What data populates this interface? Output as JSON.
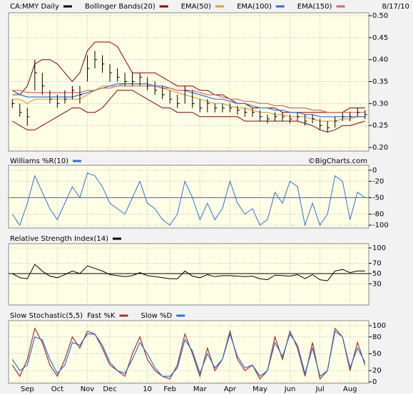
{
  "chart_data": [
    {
      "type": "ohlc",
      "title": "CA:MMY Daily",
      "date": "8/17/10",
      "color": "#000000",
      "categories": [
        null,
        null,
        "Sep",
        null,
        null,
        null,
        "Oct",
        null,
        null,
        null,
        "Nov",
        null,
        null,
        "Dec",
        null,
        null,
        null,
        null,
        "10",
        null,
        null,
        "Feb",
        null,
        null,
        null,
        "Mar",
        null,
        null,
        null,
        "Apr",
        null,
        null,
        null,
        "May",
        null,
        null,
        null,
        "Jun",
        null,
        null,
        null,
        "Jul",
        null,
        null,
        null,
        "Aug",
        null,
        null
      ],
      "high": [
        0.31,
        0.3,
        0.29,
        0.4,
        0.37,
        0.33,
        0.32,
        0.33,
        0.34,
        0.34,
        0.41,
        0.42,
        0.41,
        0.39,
        0.38,
        0.37,
        0.37,
        0.37,
        0.36,
        0.35,
        0.34,
        0.33,
        0.32,
        0.34,
        0.33,
        0.31,
        0.31,
        0.3,
        0.3,
        0.3,
        0.295,
        0.29,
        0.29,
        0.285,
        0.275,
        0.28,
        0.28,
        0.275,
        0.28,
        0.275,
        0.275,
        0.265,
        0.26,
        0.27,
        0.28,
        0.28,
        0.29,
        0.285
      ],
      "low": [
        0.29,
        0.27,
        0.25,
        0.33,
        0.32,
        0.3,
        0.29,
        0.3,
        0.31,
        0.3,
        0.35,
        0.38,
        0.37,
        0.35,
        0.35,
        0.34,
        0.34,
        0.34,
        0.33,
        0.32,
        0.31,
        0.3,
        0.29,
        0.3,
        0.29,
        0.28,
        0.28,
        0.28,
        0.28,
        0.28,
        0.275,
        0.27,
        0.27,
        0.26,
        0.255,
        0.26,
        0.26,
        0.255,
        0.26,
        0.25,
        0.255,
        0.24,
        0.235,
        0.245,
        0.26,
        0.26,
        0.27,
        0.265
      ],
      "close": [
        0.3,
        0.28,
        0.27,
        0.37,
        0.34,
        0.31,
        0.3,
        0.31,
        0.33,
        0.32,
        0.38,
        0.4,
        0.39,
        0.37,
        0.36,
        0.35,
        0.35,
        0.36,
        0.34,
        0.33,
        0.32,
        0.31,
        0.3,
        0.33,
        0.3,
        0.29,
        0.3,
        0.29,
        0.29,
        0.29,
        0.285,
        0.28,
        0.28,
        0.27,
        0.265,
        0.27,
        0.27,
        0.265,
        0.27,
        0.26,
        0.265,
        0.25,
        0.245,
        0.26,
        0.27,
        0.27,
        0.28,
        0.275
      ],
      "bands": {
        "name": "Bollinger Bands(20)",
        "color": "#800000",
        "upper": [
          0.33,
          0.32,
          0.34,
          0.39,
          0.4,
          0.4,
          0.39,
          0.37,
          0.35,
          0.37,
          0.42,
          0.44,
          0.44,
          0.44,
          0.43,
          0.4,
          0.37,
          0.37,
          0.37,
          0.37,
          0.36,
          0.35,
          0.34,
          0.34,
          0.34,
          0.33,
          0.33,
          0.32,
          0.32,
          0.31,
          0.3,
          0.3,
          0.29,
          0.29,
          0.29,
          0.29,
          0.28,
          0.28,
          0.28,
          0.28,
          0.28,
          0.28,
          0.28,
          0.28,
          0.28,
          0.29,
          0.29,
          0.29
        ],
        "lower": [
          0.26,
          0.25,
          0.24,
          0.24,
          0.25,
          0.26,
          0.27,
          0.28,
          0.29,
          0.29,
          0.28,
          0.28,
          0.29,
          0.31,
          0.33,
          0.33,
          0.33,
          0.32,
          0.31,
          0.3,
          0.29,
          0.29,
          0.28,
          0.28,
          0.28,
          0.27,
          0.27,
          0.27,
          0.27,
          0.27,
          0.27,
          0.26,
          0.26,
          0.26,
          0.26,
          0.26,
          0.26,
          0.26,
          0.26,
          0.255,
          0.25,
          0.24,
          0.235,
          0.24,
          0.25,
          0.25,
          0.255,
          0.26
        ]
      },
      "series": [
        {
          "name": "EMA(50)",
          "color": "#d4a040",
          "values": [
            0.31,
            0.31,
            0.3,
            0.31,
            0.31,
            0.31,
            0.31,
            0.31,
            0.31,
            0.31,
            0.32,
            0.33,
            0.34,
            0.34,
            0.34,
            0.345,
            0.345,
            0.345,
            0.345,
            0.34,
            0.335,
            0.33,
            0.325,
            0.32,
            0.315,
            0.31,
            0.305,
            0.3,
            0.3,
            0.295,
            0.29,
            0.29,
            0.285,
            0.28,
            0.28,
            0.275,
            0.275,
            0.27,
            0.27,
            0.27,
            0.265,
            0.26,
            0.26,
            0.26,
            0.265,
            0.265,
            0.27,
            0.27
          ]
        },
        {
          "name": "EMA(100)",
          "color": "#2f6fd6",
          "values": [
            0.32,
            0.32,
            0.315,
            0.315,
            0.315,
            0.315,
            0.315,
            0.315,
            0.315,
            0.32,
            0.325,
            0.33,
            0.335,
            0.34,
            0.345,
            0.345,
            0.345,
            0.345,
            0.345,
            0.34,
            0.34,
            0.335,
            0.33,
            0.33,
            0.325,
            0.32,
            0.315,
            0.31,
            0.31,
            0.305,
            0.3,
            0.3,
            0.295,
            0.29,
            0.29,
            0.285,
            0.285,
            0.28,
            0.28,
            0.275,
            0.275,
            0.27,
            0.27,
            0.27,
            0.27,
            0.27,
            0.27,
            0.27
          ]
        },
        {
          "name": "EMA(150)",
          "color": "#d06868",
          "values": [
            0.33,
            0.33,
            0.325,
            0.325,
            0.325,
            0.325,
            0.325,
            0.325,
            0.325,
            0.325,
            0.33,
            0.33,
            0.335,
            0.335,
            0.34,
            0.34,
            0.34,
            0.34,
            0.34,
            0.34,
            0.335,
            0.335,
            0.33,
            0.33,
            0.33,
            0.325,
            0.32,
            0.32,
            0.315,
            0.31,
            0.31,
            0.305,
            0.305,
            0.3,
            0.3,
            0.295,
            0.295,
            0.29,
            0.29,
            0.29,
            0.285,
            0.285,
            0.28,
            0.28,
            0.28,
            0.28,
            0.28,
            0.28
          ]
        }
      ],
      "ylim": [
        0.2,
        0.5
      ],
      "yticks": [
        {
          "value": 0.2,
          "label": "0.20"
        },
        {
          "value": 0.25,
          "label": "0.25"
        },
        {
          "value": 0.3,
          "label": "0.30"
        },
        {
          "value": 0.35,
          "label": "0.35"
        },
        {
          "value": 0.4,
          "label": "0.40"
        },
        {
          "value": 0.45,
          "label": "0.45"
        },
        {
          "value": 0.5,
          "label": "0.50"
        }
      ],
      "grid": true
    },
    {
      "type": "line",
      "title": "Williams %R(10)",
      "credit": "©BigCharts.com",
      "color": "#2f6fd6",
      "values": [
        -80,
        -100,
        -60,
        -10,
        -40,
        -70,
        -90,
        -60,
        -30,
        -50,
        -5,
        -10,
        -30,
        -60,
        -70,
        -80,
        -50,
        -20,
        -60,
        -70,
        -90,
        -100,
        -80,
        -20,
        -50,
        -90,
        -60,
        -90,
        -70,
        -20,
        -60,
        -80,
        -70,
        -100,
        -90,
        -40,
        -60,
        -20,
        -30,
        -100,
        -60,
        -100,
        -80,
        -10,
        -20,
        -90,
        -40,
        -50
      ],
      "reference": -50,
      "ylim": [
        -100,
        0
      ],
      "yticks": [
        0,
        -20,
        -50,
        -80,
        -100
      ],
      "grid": true
    },
    {
      "type": "line",
      "title": "Relative Strength Index(14)",
      "color": "#000000",
      "values": [
        50,
        42,
        40,
        68,
        55,
        45,
        42,
        48,
        55,
        50,
        65,
        60,
        55,
        48,
        46,
        44,
        46,
        52,
        46,
        44,
        42,
        40,
        40,
        55,
        45,
        42,
        48,
        44,
        46,
        46,
        45,
        44,
        45,
        40,
        38,
        47,
        46,
        45,
        48,
        40,
        48,
        38,
        36,
        55,
        58,
        52,
        55,
        55
      ],
      "reference": 50,
      "ylim": [
        0,
        100
      ],
      "yticks": [
        100,
        70,
        50,
        30
      ],
      "grid": true
    },
    {
      "type": "line",
      "title": "Slow Stochastic(5,5)",
      "series": [
        {
          "name": "Fast %K",
          "color": "#a83030",
          "values": [
            30,
            10,
            40,
            95,
            70,
            30,
            10,
            40,
            80,
            60,
            90,
            85,
            60,
            30,
            20,
            10,
            50,
            80,
            40,
            20,
            10,
            5,
            30,
            85,
            50,
            10,
            60,
            20,
            40,
            90,
            40,
            20,
            30,
            5,
            20,
            80,
            40,
            90,
            60,
            10,
            70,
            5,
            20,
            95,
            80,
            20,
            70,
            30
          ]
        },
        {
          "name": "Slow %D",
          "color": "#2f6fd6",
          "values": [
            40,
            20,
            30,
            80,
            75,
            40,
            15,
            30,
            70,
            65,
            85,
            85,
            65,
            35,
            20,
            15,
            40,
            70,
            50,
            25,
            10,
            10,
            25,
            75,
            55,
            15,
            50,
            25,
            40,
            85,
            45,
            25,
            30,
            10,
            20,
            70,
            45,
            85,
            65,
            15,
            60,
            10,
            20,
            90,
            80,
            25,
            60,
            35
          ]
        }
      ],
      "ylim": [
        0,
        100
      ],
      "yticks": [
        100,
        80,
        50,
        20,
        0
      ],
      "grid": true
    }
  ]
}
